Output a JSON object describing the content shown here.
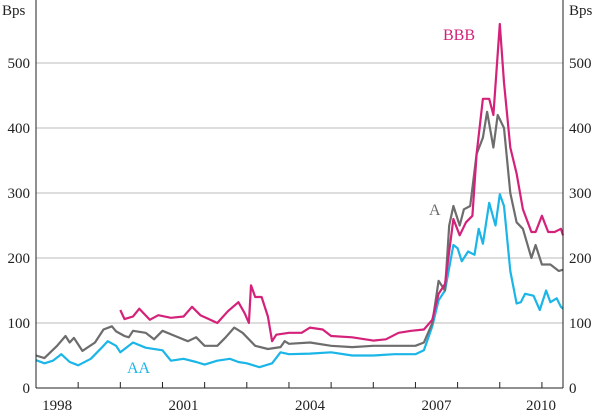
{
  "chart_data": {
    "type": "line",
    "ylabel_left": "Bps",
    "ylabel_right": "Bps",
    "ylim": [
      0,
      600
    ],
    "xlim": [
      1998.0,
      2010.5
    ],
    "yticks": [
      0,
      100,
      200,
      300,
      400,
      500
    ],
    "xtick_labels": [
      "1998",
      "2001",
      "2004",
      "2007",
      "2010"
    ],
    "grid": "horizontal",
    "colors": {
      "AA": "#1bb5e8",
      "A": "#6d6d6d",
      "BBB": "#d4217a"
    },
    "series": [
      {
        "name": "AA",
        "points": [
          [
            1998.0,
            43
          ],
          [
            1998.2,
            38
          ],
          [
            1998.4,
            42
          ],
          [
            1998.6,
            52
          ],
          [
            1998.8,
            40
          ],
          [
            1999.0,
            35
          ],
          [
            1999.3,
            45
          ],
          [
            1999.6,
            65
          ],
          [
            1999.7,
            72
          ],
          [
            1999.9,
            65
          ],
          [
            2000.0,
            55
          ],
          [
            2000.3,
            70
          ],
          [
            2000.6,
            62
          ],
          [
            2001.0,
            58
          ],
          [
            2001.2,
            42
          ],
          [
            2001.5,
            45
          ],
          [
            2001.8,
            40
          ],
          [
            2002.0,
            36
          ],
          [
            2002.3,
            42
          ],
          [
            2002.6,
            45
          ],
          [
            2002.8,
            40
          ],
          [
            2003.0,
            38
          ],
          [
            2003.3,
            32
          ],
          [
            2003.6,
            38
          ],
          [
            2003.8,
            55
          ],
          [
            2004.0,
            52
          ],
          [
            2004.5,
            53
          ],
          [
            2005.0,
            55
          ],
          [
            2005.5,
            50
          ],
          [
            2006.0,
            50
          ],
          [
            2006.5,
            52
          ],
          [
            2007.0,
            52
          ],
          [
            2007.2,
            58
          ],
          [
            2007.4,
            95
          ],
          [
            2007.55,
            135
          ],
          [
            2007.7,
            150
          ],
          [
            2007.9,
            220
          ],
          [
            2008.0,
            215
          ],
          [
            2008.1,
            195
          ],
          [
            2008.25,
            210
          ],
          [
            2008.4,
            205
          ],
          [
            2008.5,
            245
          ],
          [
            2008.6,
            222
          ],
          [
            2008.75,
            285
          ],
          [
            2008.9,
            250
          ],
          [
            2009.0,
            298
          ],
          [
            2009.1,
            280
          ],
          [
            2009.25,
            180
          ],
          [
            2009.4,
            130
          ],
          [
            2009.5,
            132
          ],
          [
            2009.6,
            145
          ],
          [
            2009.8,
            142
          ],
          [
            2009.95,
            120
          ],
          [
            2010.1,
            150
          ],
          [
            2010.2,
            132
          ],
          [
            2010.35,
            138
          ],
          [
            2010.45,
            125
          ],
          [
            2010.5,
            122
          ]
        ]
      },
      {
        "name": "A",
        "points": [
          [
            1998.0,
            50
          ],
          [
            1998.2,
            46
          ],
          [
            1998.5,
            65
          ],
          [
            1998.7,
            80
          ],
          [
            1998.8,
            70
          ],
          [
            1998.9,
            77
          ],
          [
            1999.1,
            57
          ],
          [
            1999.4,
            70
          ],
          [
            1999.6,
            90
          ],
          [
            1999.8,
            95
          ],
          [
            1999.9,
            87
          ],
          [
            2000.1,
            80
          ],
          [
            2000.2,
            78
          ],
          [
            2000.3,
            88
          ],
          [
            2000.6,
            85
          ],
          [
            2000.8,
            75
          ],
          [
            2001.0,
            88
          ],
          [
            2001.3,
            80
          ],
          [
            2001.6,
            72
          ],
          [
            2001.8,
            78
          ],
          [
            2002.0,
            65
          ],
          [
            2002.3,
            65
          ],
          [
            2002.5,
            78
          ],
          [
            2002.7,
            93
          ],
          [
            2002.9,
            85
          ],
          [
            2003.2,
            65
          ],
          [
            2003.5,
            60
          ],
          [
            2003.8,
            63
          ],
          [
            2003.9,
            72
          ],
          [
            2004.0,
            68
          ],
          [
            2004.5,
            70
          ],
          [
            2005.0,
            65
          ],
          [
            2005.5,
            63
          ],
          [
            2006.0,
            65
          ],
          [
            2006.5,
            65
          ],
          [
            2007.0,
            65
          ],
          [
            2007.2,
            70
          ],
          [
            2007.4,
            100
          ],
          [
            2007.55,
            165
          ],
          [
            2007.7,
            150
          ],
          [
            2007.8,
            250
          ],
          [
            2007.9,
            280
          ],
          [
            2008.05,
            250
          ],
          [
            2008.15,
            275
          ],
          [
            2008.3,
            280
          ],
          [
            2008.45,
            360
          ],
          [
            2008.6,
            385
          ],
          [
            2008.7,
            425
          ],
          [
            2008.85,
            370
          ],
          [
            2008.95,
            420
          ],
          [
            2009.1,
            400
          ],
          [
            2009.25,
            300
          ],
          [
            2009.4,
            255
          ],
          [
            2009.55,
            245
          ],
          [
            2009.75,
            200
          ],
          [
            2009.85,
            220
          ],
          [
            2010.0,
            190
          ],
          [
            2010.2,
            190
          ],
          [
            2010.4,
            180
          ],
          [
            2010.5,
            182
          ]
        ]
      },
      {
        "name": "BBB",
        "points": [
          [
            2000.0,
            120
          ],
          [
            2000.1,
            106
          ],
          [
            2000.3,
            110
          ],
          [
            2000.45,
            122
          ],
          [
            2000.7,
            105
          ],
          [
            2000.9,
            112
          ],
          [
            2001.2,
            108
          ],
          [
            2001.5,
            110
          ],
          [
            2001.7,
            125
          ],
          [
            2001.9,
            112
          ],
          [
            2002.1,
            106
          ],
          [
            2002.3,
            100
          ],
          [
            2002.55,
            118
          ],
          [
            2002.8,
            132
          ],
          [
            2002.95,
            115
          ],
          [
            2003.05,
            100
          ],
          [
            2003.1,
            158
          ],
          [
            2003.2,
            140
          ],
          [
            2003.35,
            140
          ],
          [
            2003.5,
            110
          ],
          [
            2003.6,
            72
          ],
          [
            2003.7,
            82
          ],
          [
            2004.0,
            85
          ],
          [
            2004.3,
            85
          ],
          [
            2004.5,
            93
          ],
          [
            2004.8,
            90
          ],
          [
            2005.0,
            80
          ],
          [
            2005.5,
            78
          ],
          [
            2006.0,
            73
          ],
          [
            2006.3,
            75
          ],
          [
            2006.6,
            85
          ],
          [
            2006.9,
            88
          ],
          [
            2007.2,
            90
          ],
          [
            2007.4,
            105
          ],
          [
            2007.55,
            145
          ],
          [
            2007.7,
            160
          ],
          [
            2007.9,
            260
          ],
          [
            2008.05,
            235
          ],
          [
            2008.2,
            255
          ],
          [
            2008.35,
            265
          ],
          [
            2008.45,
            360
          ],
          [
            2008.6,
            445
          ],
          [
            2008.75,
            445
          ],
          [
            2008.85,
            420
          ],
          [
            2009.0,
            560
          ],
          [
            2009.1,
            470
          ],
          [
            2009.25,
            370
          ],
          [
            2009.4,
            330
          ],
          [
            2009.55,
            275
          ],
          [
            2009.75,
            240
          ],
          [
            2009.85,
            240
          ],
          [
            2010.0,
            265
          ],
          [
            2010.15,
            240
          ],
          [
            2010.3,
            240
          ],
          [
            2010.45,
            245
          ],
          [
            2010.5,
            235
          ]
        ]
      }
    ]
  }
}
